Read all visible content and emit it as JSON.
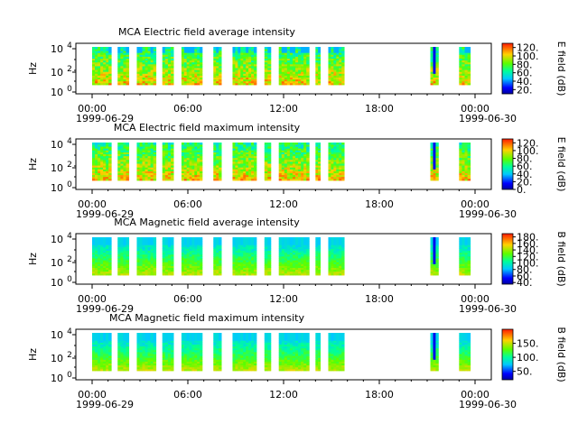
{
  "chart_data": [
    {
      "type": "heatmap",
      "title": "MCA  Electric field average intensity",
      "ylabel": "Hz",
      "colorbar_label": "E field (dB)",
      "colorbar_ticks": [
        "20.",
        "40.",
        "60.",
        "80.",
        "100.",
        "120."
      ],
      "colorbar_range": [
        10,
        130
      ],
      "y_scale": "log",
      "y_ticks": [
        "10^0",
        "10^2",
        "10^4"
      ],
      "x_ticks": [
        {
          "time": "00:00",
          "date": "1999-06-29"
        },
        {
          "time": "06:00",
          "date": ""
        },
        {
          "time": "12:00",
          "date": ""
        },
        {
          "time": "18:00",
          "date": ""
        },
        {
          "time": "00:00",
          "date": "1999-06-30"
        }
      ],
      "data_segments_hours": [
        [
          0.0,
          1.2
        ],
        [
          1.6,
          2.3
        ],
        [
          2.8,
          4.0
        ],
        [
          4.4,
          5.1
        ],
        [
          5.6,
          6.9
        ],
        [
          7.6,
          8.1
        ],
        [
          8.8,
          10.3
        ],
        [
          10.8,
          11.2
        ],
        [
          11.7,
          13.6
        ],
        [
          14.0,
          14.3
        ],
        [
          14.8,
          15.8
        ],
        [
          21.2,
          21.7
        ],
        [
          23.0,
          23.7
        ]
      ]
    },
    {
      "type": "heatmap",
      "title": "MCA  Electric field maximum intensity",
      "ylabel": "Hz",
      "colorbar_label": "E field (dB)",
      "colorbar_ticks": [
        "0.",
        "20.",
        "40.",
        "60.",
        "80.",
        "100.",
        "120."
      ],
      "colorbar_range": [
        0,
        130
      ],
      "y_scale": "log",
      "y_ticks": [
        "10^0",
        "10^2",
        "10^4"
      ],
      "x_ticks": [
        {
          "time": "00:00",
          "date": "1999-06-29"
        },
        {
          "time": "06:00",
          "date": ""
        },
        {
          "time": "12:00",
          "date": ""
        },
        {
          "time": "18:00",
          "date": ""
        },
        {
          "time": "00:00",
          "date": "1999-06-30"
        }
      ],
      "data_segments_hours": [
        [
          0.0,
          1.2
        ],
        [
          1.6,
          2.3
        ],
        [
          2.8,
          4.0
        ],
        [
          4.4,
          5.1
        ],
        [
          5.6,
          6.9
        ],
        [
          7.6,
          8.1
        ],
        [
          8.8,
          10.3
        ],
        [
          10.8,
          11.2
        ],
        [
          11.7,
          13.6
        ],
        [
          14.0,
          14.3
        ],
        [
          14.8,
          15.8
        ],
        [
          21.2,
          21.7
        ],
        [
          23.0,
          23.7
        ]
      ]
    },
    {
      "type": "heatmap",
      "title": "MCA  Magnetic field average intensity",
      "ylabel": "Hz",
      "colorbar_label": "B field (dB)",
      "colorbar_ticks": [
        "40.",
        "60.",
        "80.",
        "100.",
        "120.",
        "140.",
        "160.",
        "180."
      ],
      "colorbar_range": [
        35,
        190
      ],
      "y_scale": "log",
      "y_ticks": [
        "10^0",
        "10^2",
        "10^4"
      ],
      "x_ticks": [
        {
          "time": "00:00",
          "date": "1999-06-29"
        },
        {
          "time": "06:00",
          "date": ""
        },
        {
          "time": "12:00",
          "date": ""
        },
        {
          "time": "18:00",
          "date": ""
        },
        {
          "time": "00:00",
          "date": "1999-06-30"
        }
      ],
      "data_segments_hours": [
        [
          0.0,
          1.2
        ],
        [
          1.6,
          2.3
        ],
        [
          2.8,
          4.0
        ],
        [
          4.4,
          5.1
        ],
        [
          5.6,
          6.9
        ],
        [
          7.6,
          8.1
        ],
        [
          8.8,
          10.3
        ],
        [
          10.8,
          11.2
        ],
        [
          11.7,
          13.6
        ],
        [
          14.0,
          14.3
        ],
        [
          14.8,
          15.8
        ],
        [
          21.2,
          21.7
        ],
        [
          23.0,
          23.7
        ]
      ]
    },
    {
      "type": "heatmap",
      "title": "MCA  Magnetic field maximum intensity",
      "ylabel": "Hz",
      "colorbar_label": "B field (dB)",
      "colorbar_ticks": [
        "50.",
        "100.",
        "150."
      ],
      "colorbar_range": [
        20,
        200
      ],
      "y_scale": "log",
      "y_ticks": [
        "10^0",
        "10^2",
        "10^4"
      ],
      "x_ticks": [
        {
          "time": "00:00",
          "date": "1999-06-29"
        },
        {
          "time": "06:00",
          "date": ""
        },
        {
          "time": "12:00",
          "date": ""
        },
        {
          "time": "18:00",
          "date": ""
        },
        {
          "time": "00:00",
          "date": "1999-06-30"
        }
      ],
      "data_segments_hours": [
        [
          0.0,
          1.2
        ],
        [
          1.6,
          2.3
        ],
        [
          2.8,
          4.0
        ],
        [
          4.4,
          5.1
        ],
        [
          5.6,
          6.9
        ],
        [
          7.6,
          8.1
        ],
        [
          8.8,
          10.3
        ],
        [
          10.8,
          11.2
        ],
        [
          11.7,
          13.6
        ],
        [
          14.0,
          14.3
        ],
        [
          14.8,
          15.8
        ],
        [
          21.2,
          21.7
        ],
        [
          23.0,
          23.7
        ]
      ]
    }
  ]
}
